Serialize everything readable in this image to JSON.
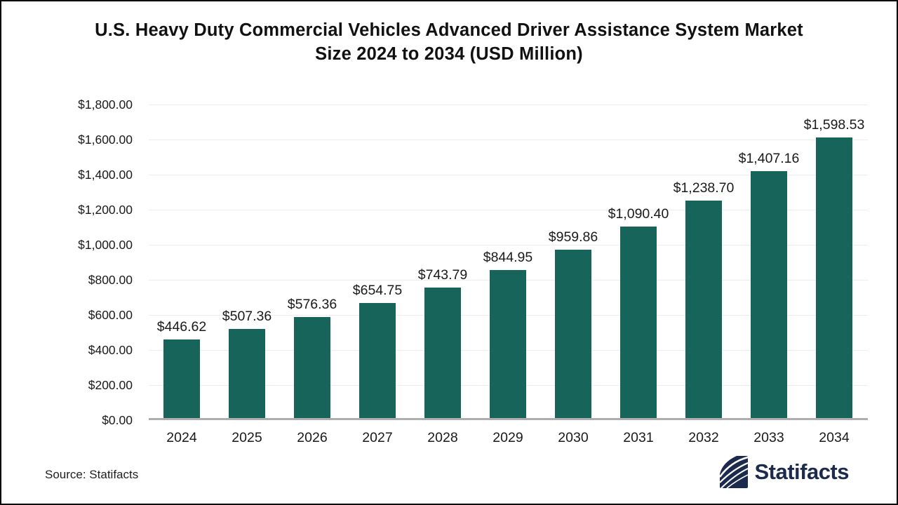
{
  "page": {
    "title_lines": [
      "U.S. Heavy Duty Commercial Vehicles Advanced Driver Assistance System Market",
      "Size 2024 to 2034 (USD Million)"
    ],
    "source": "Source: Statifacts",
    "logo_text": "Statifacts"
  },
  "colors": {
    "bar": "#17655A",
    "grid": "#EDEDED",
    "baseline": "#AEAEAE",
    "title_text": "#111111",
    "label_text": "#1A1A1A",
    "logo_navy": "#1C2B4D"
  },
  "chart_data": {
    "type": "bar",
    "title": "U.S. Heavy Duty Commercial Vehicles Advanced Driver Assistance System Market Size 2024 to 2034 (USD Million)",
    "categories": [
      "2024",
      "2025",
      "2026",
      "2027",
      "2028",
      "2029",
      "2030",
      "2031",
      "2032",
      "2033",
      "2034"
    ],
    "values": [
      446.62,
      507.36,
      576.36,
      654.75,
      743.79,
      844.95,
      959.86,
      1090.4,
      1238.7,
      1407.16,
      1598.53
    ],
    "value_labels": [
      "$446.62",
      "$507.36",
      "$576.36",
      "$654.75",
      "$743.79",
      "$844.95",
      "$959.86",
      "$1,090.40",
      "$1,238.70",
      "$1,407.16",
      "$1,598.53"
    ],
    "xlabel": "",
    "ylabel": "",
    "ylim": [
      0,
      1800
    ],
    "ytick_step": 200,
    "yticks": [
      0,
      200,
      400,
      600,
      800,
      1000,
      1200,
      1400,
      1600,
      1800
    ],
    "ytick_labels": [
      "$0.00",
      "$200.00",
      "$400.00",
      "$600.00",
      "$800.00",
      "$1,000.00",
      "$1,200.00",
      "$1,400.00",
      "$1,600.00",
      "$1,800.00"
    ],
    "grid": true,
    "legend": false
  }
}
